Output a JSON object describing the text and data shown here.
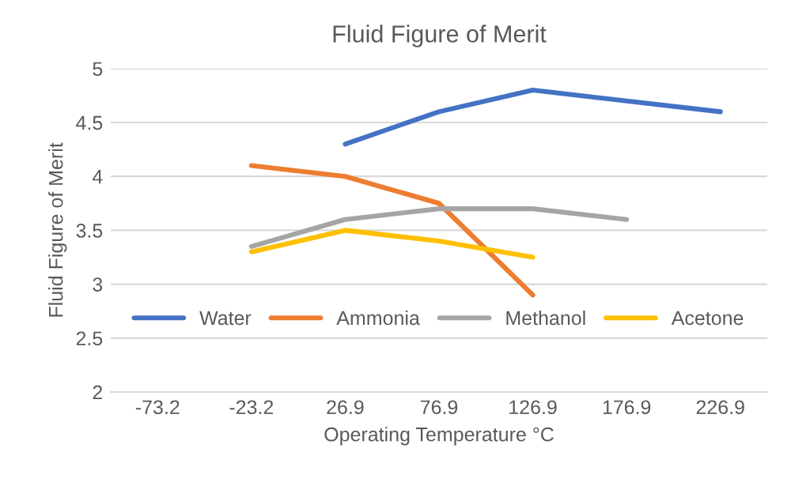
{
  "chart_data": {
    "type": "line",
    "title": "Fluid Figure of Merit",
    "xlabel": "Operating Temperature °C",
    "ylabel": "Fluid Figure of Merit",
    "categories": [
      "-73.2",
      "-23.2",
      "26.9",
      "76.9",
      "126.9",
      "176.9",
      "226.9"
    ],
    "series": [
      {
        "name": "Water",
        "color": "#4472c4",
        "values": [
          null,
          null,
          4.3,
          4.6,
          4.8,
          4.7,
          4.6
        ]
      },
      {
        "name": "Ammonia",
        "color": "#ed7d31",
        "values": [
          null,
          4.1,
          4.0,
          3.75,
          2.9,
          null,
          null
        ]
      },
      {
        "name": "Methanol",
        "color": "#a5a5a5",
        "values": [
          null,
          3.35,
          3.6,
          3.7,
          3.7,
          3.6,
          null
        ]
      },
      {
        "name": "Acetone",
        "color": "#ffc000",
        "values": [
          null,
          3.3,
          3.5,
          3.4,
          3.25,
          null,
          null
        ]
      }
    ],
    "ylim": [
      2,
      5
    ],
    "yticks": [
      2,
      {
        "value": 2.5,
        "label": "2.5"
      },
      3,
      {
        "value": 3.5,
        "label": "3.5"
      },
      4,
      {
        "value": 4.5,
        "label": "4.5"
      },
      5
    ],
    "grid": "y",
    "legend": "bottom",
    "marker": "none",
    "line_style": "solid"
  }
}
